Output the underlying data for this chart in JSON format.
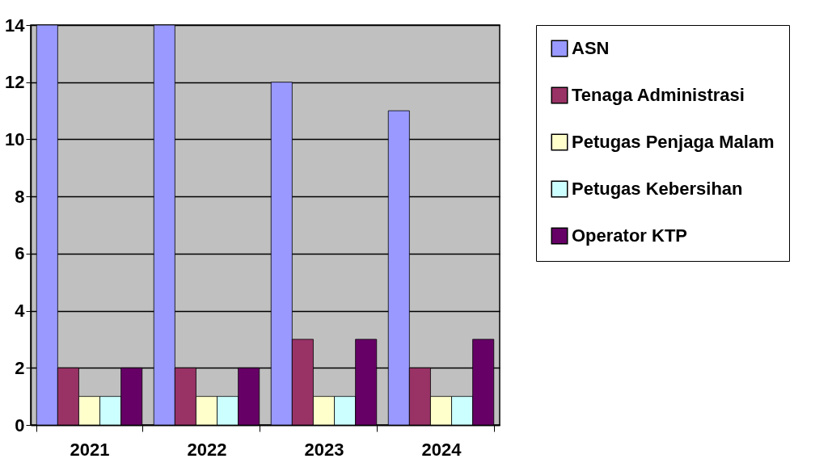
{
  "chart_data": {
    "type": "bar",
    "categories": [
      "2021",
      "2022",
      "2023",
      "2024"
    ],
    "series": [
      {
        "name": "ASN",
        "color": "#9999ff",
        "values": [
          14,
          14,
          12,
          11
        ]
      },
      {
        "name": "Tenaga Administrasi",
        "color": "#993366",
        "values": [
          2,
          2,
          3,
          2
        ]
      },
      {
        "name": "Petugas Penjaga Malam",
        "color": "#ffffcc",
        "values": [
          1,
          1,
          1,
          1
        ]
      },
      {
        "name": "Petugas Kebersihan",
        "color": "#ccffff",
        "values": [
          1,
          1,
          1,
          1
        ]
      },
      {
        "name": "Operator KTP",
        "color": "#660066",
        "values": [
          2,
          2,
          3,
          3
        ]
      }
    ],
    "ylim": [
      0,
      14
    ],
    "yticks": [
      0,
      2,
      4,
      6,
      8,
      10,
      12,
      14
    ],
    "grid": "y",
    "legend": "right"
  }
}
